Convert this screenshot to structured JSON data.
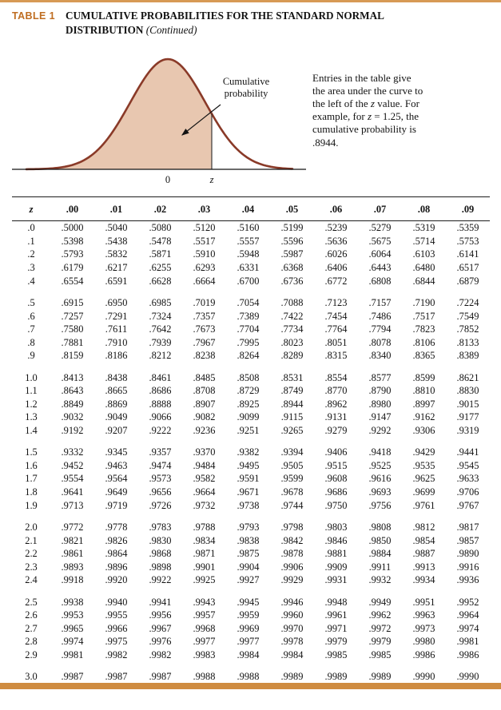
{
  "header": {
    "table_label": "TABLE 1",
    "title": "CUMULATIVE PROBABILITIES FOR THE STANDARD NORMAL DISTRIBUTION",
    "continued": "(Continued)"
  },
  "figure": {
    "curve_label_line1": "Cumulative",
    "curve_label_line2": "probability",
    "axis_zero": "0",
    "axis_z": "z",
    "note": {
      "part1": "Entries in the table give the area under the curve to the left of the ",
      "z1": "z",
      "part2": " value. For example, for ",
      "z2": "z",
      "part3": " = 1.25, the cumulative probability is .8944."
    },
    "colors": {
      "curve_stroke": "#8a3a28",
      "curve_fill": "#e8c7b0",
      "accent": "#bf6d21"
    }
  },
  "table": {
    "headers": [
      "z",
      ".00",
      ".01",
      ".02",
      ".03",
      ".04",
      ".05",
      ".06",
      ".07",
      ".08",
      ".09"
    ],
    "groups": [
      [
        [
          ".0",
          ".5000",
          ".5040",
          ".5080",
          ".5120",
          ".5160",
          ".5199",
          ".5239",
          ".5279",
          ".5319",
          ".5359"
        ],
        [
          ".1",
          ".5398",
          ".5438",
          ".5478",
          ".5517",
          ".5557",
          ".5596",
          ".5636",
          ".5675",
          ".5714",
          ".5753"
        ],
        [
          ".2",
          ".5793",
          ".5832",
          ".5871",
          ".5910",
          ".5948",
          ".5987",
          ".6026",
          ".6064",
          ".6103",
          ".6141"
        ],
        [
          ".3",
          ".6179",
          ".6217",
          ".6255",
          ".6293",
          ".6331",
          ".6368",
          ".6406",
          ".6443",
          ".6480",
          ".6517"
        ],
        [
          ".4",
          ".6554",
          ".6591",
          ".6628",
          ".6664",
          ".6700",
          ".6736",
          ".6772",
          ".6808",
          ".6844",
          ".6879"
        ]
      ],
      [
        [
          ".5",
          ".6915",
          ".6950",
          ".6985",
          ".7019",
          ".7054",
          ".7088",
          ".7123",
          ".7157",
          ".7190",
          ".7224"
        ],
        [
          ".6",
          ".7257",
          ".7291",
          ".7324",
          ".7357",
          ".7389",
          ".7422",
          ".7454",
          ".7486",
          ".7517",
          ".7549"
        ],
        [
          ".7",
          ".7580",
          ".7611",
          ".7642",
          ".7673",
          ".7704",
          ".7734",
          ".7764",
          ".7794",
          ".7823",
          ".7852"
        ],
        [
          ".8",
          ".7881",
          ".7910",
          ".7939",
          ".7967",
          ".7995",
          ".8023",
          ".8051",
          ".8078",
          ".8106",
          ".8133"
        ],
        [
          ".9",
          ".8159",
          ".8186",
          ".8212",
          ".8238",
          ".8264",
          ".8289",
          ".8315",
          ".8340",
          ".8365",
          ".8389"
        ]
      ],
      [
        [
          "1.0",
          ".8413",
          ".8438",
          ".8461",
          ".8485",
          ".8508",
          ".8531",
          ".8554",
          ".8577",
          ".8599",
          ".8621"
        ],
        [
          "1.1",
          ".8643",
          ".8665",
          ".8686",
          ".8708",
          ".8729",
          ".8749",
          ".8770",
          ".8790",
          ".8810",
          ".8830"
        ],
        [
          "1.2",
          ".8849",
          ".8869",
          ".8888",
          ".8907",
          ".8925",
          ".8944",
          ".8962",
          ".8980",
          ".8997",
          ".9015"
        ],
        [
          "1.3",
          ".9032",
          ".9049",
          ".9066",
          ".9082",
          ".9099",
          ".9115",
          ".9131",
          ".9147",
          ".9162",
          ".9177"
        ],
        [
          "1.4",
          ".9192",
          ".9207",
          ".9222",
          ".9236",
          ".9251",
          ".9265",
          ".9279",
          ".9292",
          ".9306",
          ".9319"
        ]
      ],
      [
        [
          "1.5",
          ".9332",
          ".9345",
          ".9357",
          ".9370",
          ".9382",
          ".9394",
          ".9406",
          ".9418",
          ".9429",
          ".9441"
        ],
        [
          "1.6",
          ".9452",
          ".9463",
          ".9474",
          ".9484",
          ".9495",
          ".9505",
          ".9515",
          ".9525",
          ".9535",
          ".9545"
        ],
        [
          "1.7",
          ".9554",
          ".9564",
          ".9573",
          ".9582",
          ".9591",
          ".9599",
          ".9608",
          ".9616",
          ".9625",
          ".9633"
        ],
        [
          "1.8",
          ".9641",
          ".9649",
          ".9656",
          ".9664",
          ".9671",
          ".9678",
          ".9686",
          ".9693",
          ".9699",
          ".9706"
        ],
        [
          "1.9",
          ".9713",
          ".9719",
          ".9726",
          ".9732",
          ".9738",
          ".9744",
          ".9750",
          ".9756",
          ".9761",
          ".9767"
        ]
      ],
      [
        [
          "2.0",
          ".9772",
          ".9778",
          ".9783",
          ".9788",
          ".9793",
          ".9798",
          ".9803",
          ".9808",
          ".9812",
          ".9817"
        ],
        [
          "2.1",
          ".9821",
          ".9826",
          ".9830",
          ".9834",
          ".9838",
          ".9842",
          ".9846",
          ".9850",
          ".9854",
          ".9857"
        ],
        [
          "2.2",
          ".9861",
          ".9864",
          ".9868",
          ".9871",
          ".9875",
          ".9878",
          ".9881",
          ".9884",
          ".9887",
          ".9890"
        ],
        [
          "2.3",
          ".9893",
          ".9896",
          ".9898",
          ".9901",
          ".9904",
          ".9906",
          ".9909",
          ".9911",
          ".9913",
          ".9916"
        ],
        [
          "2.4",
          ".9918",
          ".9920",
          ".9922",
          ".9925",
          ".9927",
          ".9929",
          ".9931",
          ".9932",
          ".9934",
          ".9936"
        ]
      ],
      [
        [
          "2.5",
          ".9938",
          ".9940",
          ".9941",
          ".9943",
          ".9945",
          ".9946",
          ".9948",
          ".9949",
          ".9951",
          ".9952"
        ],
        [
          "2.6",
          ".9953",
          ".9955",
          ".9956",
          ".9957",
          ".9959",
          ".9960",
          ".9961",
          ".9962",
          ".9963",
          ".9964"
        ],
        [
          "2.7",
          ".9965",
          ".9966",
          ".9967",
          ".9968",
          ".9969",
          ".9970",
          ".9971",
          ".9972",
          ".9973",
          ".9974"
        ],
        [
          "2.8",
          ".9974",
          ".9975",
          ".9976",
          ".9977",
          ".9977",
          ".9978",
          ".9979",
          ".9979",
          ".9980",
          ".9981"
        ],
        [
          "2.9",
          ".9981",
          ".9982",
          ".9982",
          ".9983",
          ".9984",
          ".9984",
          ".9985",
          ".9985",
          ".9986",
          ".9986"
        ]
      ],
      [
        [
          "3.0",
          ".9987",
          ".9987",
          ".9987",
          ".9988",
          ".9988",
          ".9989",
          ".9989",
          ".9989",
          ".9990",
          ".9990"
        ]
      ]
    ]
  }
}
